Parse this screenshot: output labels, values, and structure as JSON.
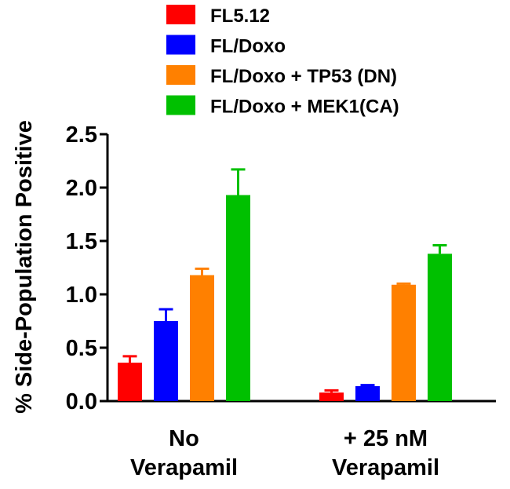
{
  "chart_data": {
    "type": "bar",
    "title": "",
    "xlabel": "",
    "ylabel": "% Side-Population Positive",
    "ylim": [
      0,
      2.5
    ],
    "yticks": [
      "0.0",
      "0.5",
      "1.0",
      "1.5",
      "2.0",
      "2.5"
    ],
    "grid": false,
    "legend_position": "top",
    "categories": [
      {
        "line1": "No",
        "line2": "Verapamil"
      },
      {
        "line1": "+ 25 nM",
        "line2": "Verapamil"
      }
    ],
    "series": [
      {
        "name": "FL5.12",
        "color": "#ff0000",
        "values": [
          0.36,
          0.08
        ],
        "errors": [
          0.06,
          0.02
        ]
      },
      {
        "name": "FL/Doxo",
        "color": "#0000ff",
        "values": [
          0.75,
          0.14
        ],
        "errors": [
          0.11,
          0.01
        ]
      },
      {
        "name": "FL/Doxo + TP53 (DN)",
        "color": "#ff8000",
        "values": [
          1.18,
          1.09
        ],
        "errors": [
          0.06,
          0.01
        ]
      },
      {
        "name": "FL/Doxo + MEK1(CA)",
        "color": "#00c000",
        "values": [
          1.93,
          1.38
        ],
        "errors": [
          0.24,
          0.08
        ]
      }
    ]
  }
}
